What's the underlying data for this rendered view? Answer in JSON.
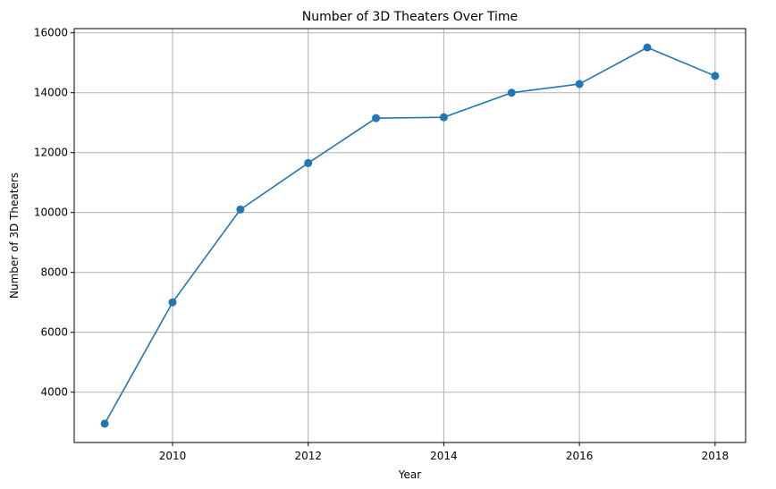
{
  "chart_data": {
    "type": "line",
    "title": "Number of 3D Theaters Over Time",
    "xlabel": "Year",
    "ylabel": "Number of 3D Theaters",
    "x": [
      2009,
      2010,
      2011,
      2012,
      2013,
      2014,
      2015,
      2016,
      2017,
      2018
    ],
    "series": [
      {
        "values": [
          2950,
          7000,
          10100,
          11650,
          13150,
          13180,
          14000,
          14290,
          15510,
          14560
        ],
        "color": "#1f77b4",
        "marker": "circle"
      }
    ],
    "xlim": [
      2008.55,
      2018.45
    ],
    "ylim": [
      2320,
      16140
    ],
    "xticks": [
      2010,
      2012,
      2014,
      2016,
      2018
    ],
    "yticks": [
      4000,
      6000,
      8000,
      10000,
      12000,
      14000,
      16000
    ],
    "grid": true,
    "legend": false
  }
}
